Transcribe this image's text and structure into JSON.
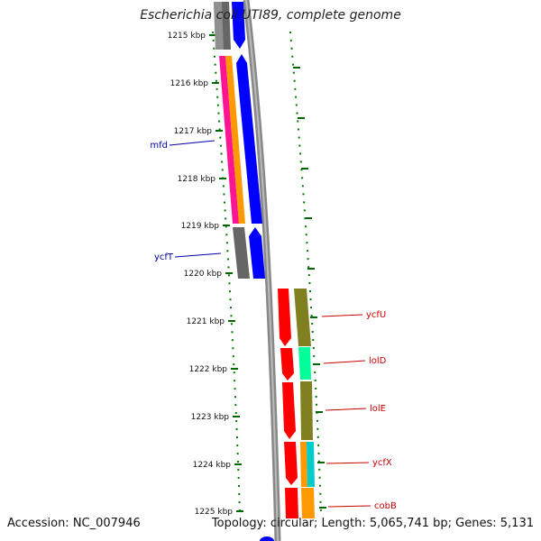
{
  "title": "Escherichia coli UTI89, complete genome",
  "footer": {
    "accession": "Accession: NC_007946",
    "summary": "Topology: circular; Length: 5,065,741 bp; Genes: 5,131"
  },
  "ruler": {
    "ticks": [
      "1215 kbp",
      "1216 kbp",
      "1217 kbp",
      "1218 kbp",
      "1219 kbp",
      "1220 kbp",
      "1221 kbp",
      "1222 kbp",
      "1223 kbp",
      "1224 kbp",
      "1225 kbp"
    ]
  },
  "gene_labels": {
    "left": [
      "mfd",
      "ycfT"
    ],
    "right": [
      "ycfU",
      "lolD",
      "lolE",
      "ycfX",
      "cobB"
    ]
  },
  "colors": {
    "blue_cds": "#0000ff",
    "red_cds": "#ff0000",
    "pink": "#ff1493",
    "orange": "#ff9900",
    "grey": "#777777",
    "olive": "#808020",
    "mint": "#00ff99",
    "cyan": "#00cccc",
    "left_label": "#0000aa",
    "right_label": "#cc0000",
    "tick_green": "#006600"
  }
}
